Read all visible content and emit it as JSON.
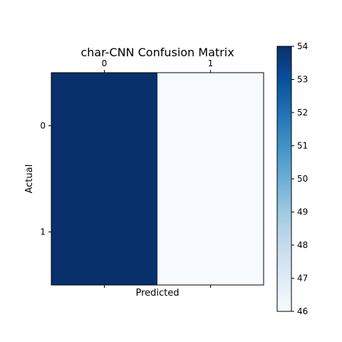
{
  "chart_data": {
    "type": "heatmap",
    "title": "char-CNN Confusion Matrix",
    "xlabel": "Predicted",
    "ylabel": "Actual",
    "x_categories": [
      "0",
      "1"
    ],
    "y_categories": [
      "0",
      "1"
    ],
    "values": [
      [
        54,
        46
      ],
      [
        54,
        46
      ]
    ],
    "colormap": "Blues",
    "color_low": "#f7fbff",
    "color_high": "#08306b",
    "colorbar": {
      "range": [
        46,
        54
      ],
      "ticks": [
        "46",
        "47",
        "48",
        "49",
        "50",
        "51",
        "52",
        "53",
        "54"
      ]
    },
    "x_tick_position": "top",
    "grid": false
  }
}
